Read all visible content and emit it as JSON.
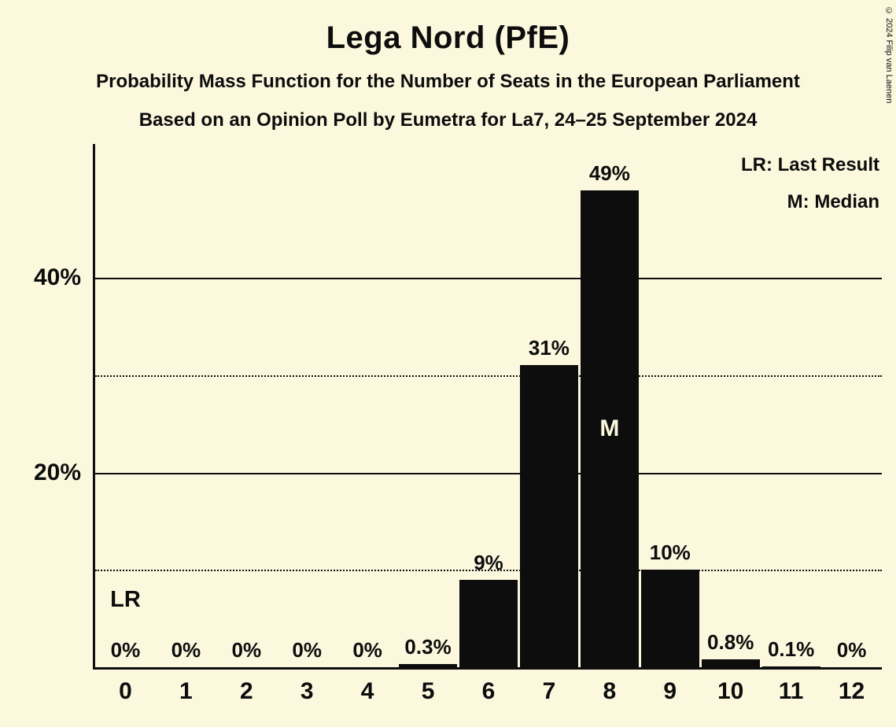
{
  "header": {
    "title": "Lega Nord (PfE)",
    "subtitle1": "Probability Mass Function for the Number of Seats in the European Parliament",
    "subtitle2": "Based on an Opinion Poll by Eumetra for La7, 24–25 September 2024"
  },
  "legend": {
    "lr": "LR: Last Result",
    "m": "M: Median"
  },
  "copyright": "© 2024 Filip van Laenen",
  "colors": {
    "background": "#FCF8DE",
    "bar": "#0D0D0D",
    "text": "#0D0D0D",
    "label_inside_bar": "#FCF8DE"
  },
  "chart_data": {
    "type": "bar",
    "title": "Lega Nord (PfE)",
    "categories": [
      "0",
      "1",
      "2",
      "3",
      "4",
      "5",
      "6",
      "7",
      "8",
      "9",
      "10",
      "11",
      "12"
    ],
    "values": [
      0,
      0,
      0,
      0,
      0,
      0.3,
      9,
      31,
      49,
      10,
      0.8,
      0.1,
      0
    ],
    "value_labels": [
      "0%",
      "0%",
      "0%",
      "0%",
      "0%",
      "0.3%",
      "9%",
      "31%",
      "49%",
      "10%",
      "0.8%",
      "0.1%",
      "0%"
    ],
    "xlabel": "",
    "ylabel": "",
    "ylim": [
      0,
      53.7
    ],
    "yticks": [
      {
        "value": 10,
        "label": "",
        "line": "dotted"
      },
      {
        "value": 20,
        "label": "20%",
        "line": "solid"
      },
      {
        "value": 30,
        "label": "",
        "line": "dotted"
      },
      {
        "value": 40,
        "label": "40%",
        "line": "solid"
      }
    ],
    "grid": "horizontal",
    "legend_position": "top-right",
    "median_category": "8",
    "median_marker": "M",
    "last_result_category": "0",
    "last_result_marker": "LR"
  }
}
